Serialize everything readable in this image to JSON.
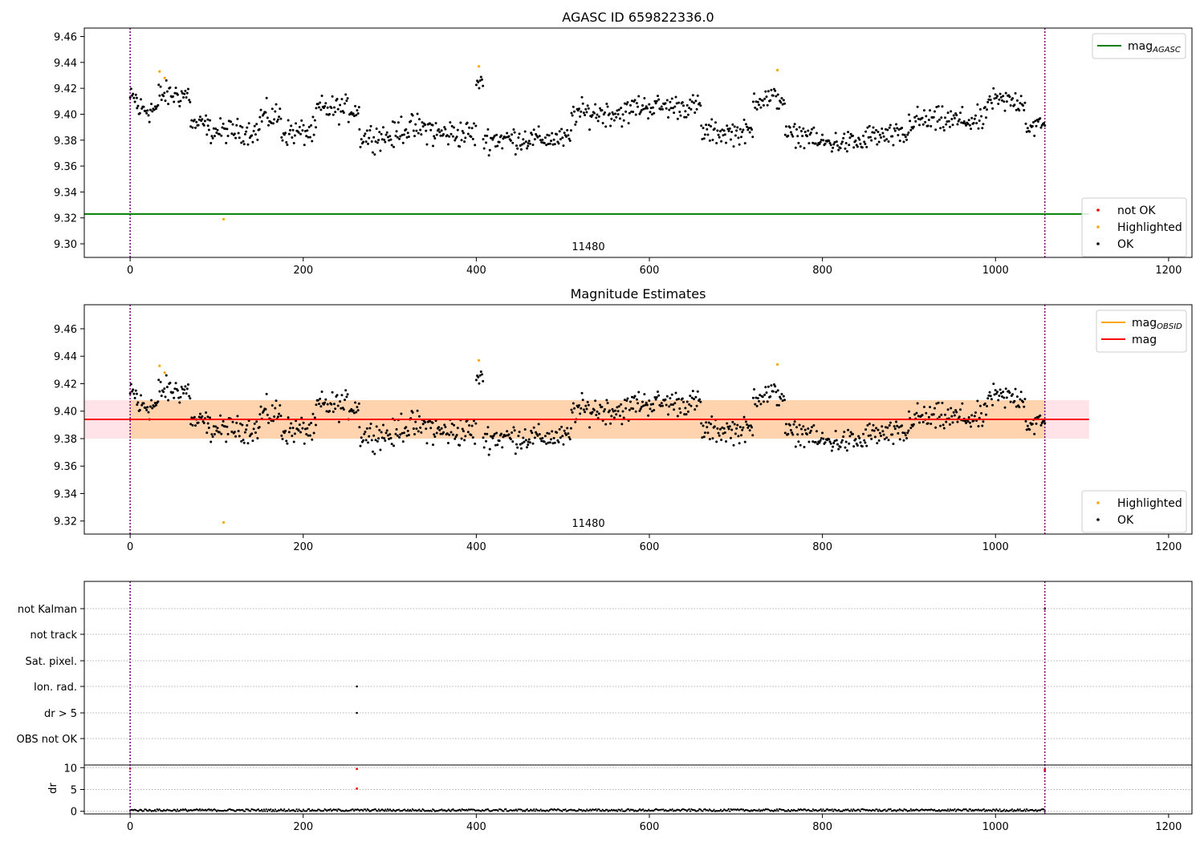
{
  "chart_data": [
    {
      "type": "scatter",
      "title": "AGASC ID 659822336.0",
      "annotation": "11480",
      "xlim": [
        -53,
        1227
      ],
      "ylim": [
        9.2895,
        9.4665
      ],
      "xticks": [
        0,
        200,
        400,
        600,
        800,
        1000,
        1200
      ],
      "yticks": [
        9.3,
        9.32,
        9.34,
        9.36,
        9.38,
        9.4,
        9.42,
        9.44,
        9.46
      ],
      "grid": false,
      "legend_top": {
        "position": "top-right",
        "entries": [
          {
            "label": "mag",
            "sub": "AGASC",
            "color": "#008000",
            "kind": "line"
          }
        ]
      },
      "legend_bottom": {
        "position": "bottom-right",
        "entries": [
          {
            "label": "not OK",
            "color": "#ff0000",
            "kind": "dot"
          },
          {
            "label": "Highlighted",
            "color": "#ffa500",
            "kind": "dot"
          },
          {
            "label": "OK",
            "color": "#000000",
            "kind": "dot"
          }
        ]
      },
      "hlines": [
        {
          "name": "mag_AGASC",
          "y": 9.323,
          "x_end": 1108,
          "color": "#008000"
        }
      ],
      "vlines": [
        0,
        1057
      ],
      "segments": [
        {
          "x0": 0,
          "x1": 8,
          "y": 9.412,
          "spread": 0.01
        },
        {
          "x0": 8,
          "x1": 33,
          "y": 9.404,
          "spread": 0.012
        },
        {
          "x0": 33,
          "x1": 70,
          "y": 9.415,
          "spread": 0.011
        },
        {
          "x0": 70,
          "x1": 90,
          "y": 9.392,
          "spread": 0.009
        },
        {
          "x0": 90,
          "x1": 150,
          "y": 9.387,
          "spread": 0.01
        },
        {
          "x0": 150,
          "x1": 175,
          "y": 9.398,
          "spread": 0.012
        },
        {
          "x0": 175,
          "x1": 215,
          "y": 9.386,
          "spread": 0.011
        },
        {
          "x0": 215,
          "x1": 265,
          "y": 9.404,
          "spread": 0.011
        },
        {
          "x0": 265,
          "x1": 310,
          "y": 9.383,
          "spread": 0.011
        },
        {
          "x0": 310,
          "x1": 350,
          "y": 9.389,
          "spread": 0.012
        },
        {
          "x0": 350,
          "x1": 400,
          "y": 9.385,
          "spread": 0.012
        },
        {
          "x0": 400,
          "x1": 408,
          "y": 9.424,
          "spread": 0.006
        },
        {
          "x0": 408,
          "x1": 460,
          "y": 9.381,
          "spread": 0.011
        },
        {
          "x0": 460,
          "x1": 510,
          "y": 9.381,
          "spread": 0.009
        },
        {
          "x0": 510,
          "x1": 580,
          "y": 9.401,
          "spread": 0.011
        },
        {
          "x0": 580,
          "x1": 660,
          "y": 9.406,
          "spread": 0.01
        },
        {
          "x0": 660,
          "x1": 720,
          "y": 9.386,
          "spread": 0.01
        },
        {
          "x0": 720,
          "x1": 757,
          "y": 9.412,
          "spread": 0.01
        },
        {
          "x0": 757,
          "x1": 790,
          "y": 9.384,
          "spread": 0.009
        },
        {
          "x0": 790,
          "x1": 850,
          "y": 9.378,
          "spread": 0.01
        },
        {
          "x0": 850,
          "x1": 900,
          "y": 9.383,
          "spread": 0.01
        },
        {
          "x0": 900,
          "x1": 990,
          "y": 9.395,
          "spread": 0.011
        },
        {
          "x0": 990,
          "x1": 1035,
          "y": 9.41,
          "spread": 0.01
        },
        {
          "x0": 1035,
          "x1": 1057,
          "y": 9.391,
          "spread": 0.01
        }
      ],
      "highlighted_points": [
        [
          34,
          9.433
        ],
        [
          40,
          9.428
        ],
        [
          108,
          9.319
        ],
        [
          403,
          9.437
        ],
        [
          748,
          9.434
        ]
      ],
      "point_step": 1.1
    },
    {
      "type": "scatter",
      "title": "Magnitude Estimates",
      "annotation": "11480",
      "xlim": [
        -53,
        1227
      ],
      "ylim": [
        9.3105,
        9.4775
      ],
      "xticks": [
        0,
        200,
        400,
        600,
        800,
        1000,
        1200
      ],
      "yticks": [
        9.32,
        9.34,
        9.36,
        9.38,
        9.4,
        9.42,
        9.44,
        9.46
      ],
      "grid": false,
      "legend_top": {
        "position": "top-right",
        "entries": [
          {
            "label": "mag",
            "sub": "OBSID",
            "color": "#ffa500",
            "kind": "line"
          },
          {
            "label": "mag",
            "sub": "",
            "color": "#ff0000",
            "kind": "line"
          }
        ]
      },
      "legend_bottom": {
        "position": "bottom-right",
        "entries": [
          {
            "label": "Highlighted",
            "color": "#ffa500",
            "kind": "dot"
          },
          {
            "label": "OK",
            "color": "#000000",
            "kind": "dot"
          }
        ]
      },
      "mag_line": {
        "y": 9.394,
        "x_start": -53,
        "x_end": 1108,
        "color": "#ff0000"
      },
      "band_outer": {
        "y0": 9.38,
        "y1": 9.408,
        "x_start": -53,
        "x_end": 1108,
        "color": "#ffc0cb"
      },
      "band_inner": {
        "y0": 9.38,
        "y1": 9.408,
        "x_start": 0,
        "x_end": 1057,
        "color": "#ffa500"
      },
      "vlines": [
        0,
        1057
      ],
      "same_points_as_panel": 0
    },
    {
      "type": "scatter",
      "title": "",
      "xlim": [
        -53,
        1227
      ],
      "xticks": [
        0,
        200,
        400,
        600,
        800,
        1000,
        1200
      ],
      "flag_labels": [
        "not Kalman",
        "not track",
        "Sat. pixel.",
        "Ion. rad.",
        "dr > 5",
        "OBS not OK"
      ],
      "flag_points": [
        {
          "flag": "Ion. rad.",
          "x": 262
        },
        {
          "flag": "dr > 5",
          "x": 262
        },
        {
          "flag": "not Kalman",
          "x": 1057
        }
      ],
      "dr": {
        "ylabel": "dr",
        "yticks": [
          0,
          5,
          10
        ],
        "ylim": [
          -0.6,
          10.6
        ],
        "baseline": 0.25,
        "bad_points": [
          [
            262,
            9.7
          ],
          [
            262,
            5.2
          ],
          [
            1057,
            9.6
          ],
          [
            1057,
            9.2
          ],
          [
            0,
            9.8
          ]
        ]
      },
      "vlines": [
        0,
        1057
      ]
    }
  ]
}
